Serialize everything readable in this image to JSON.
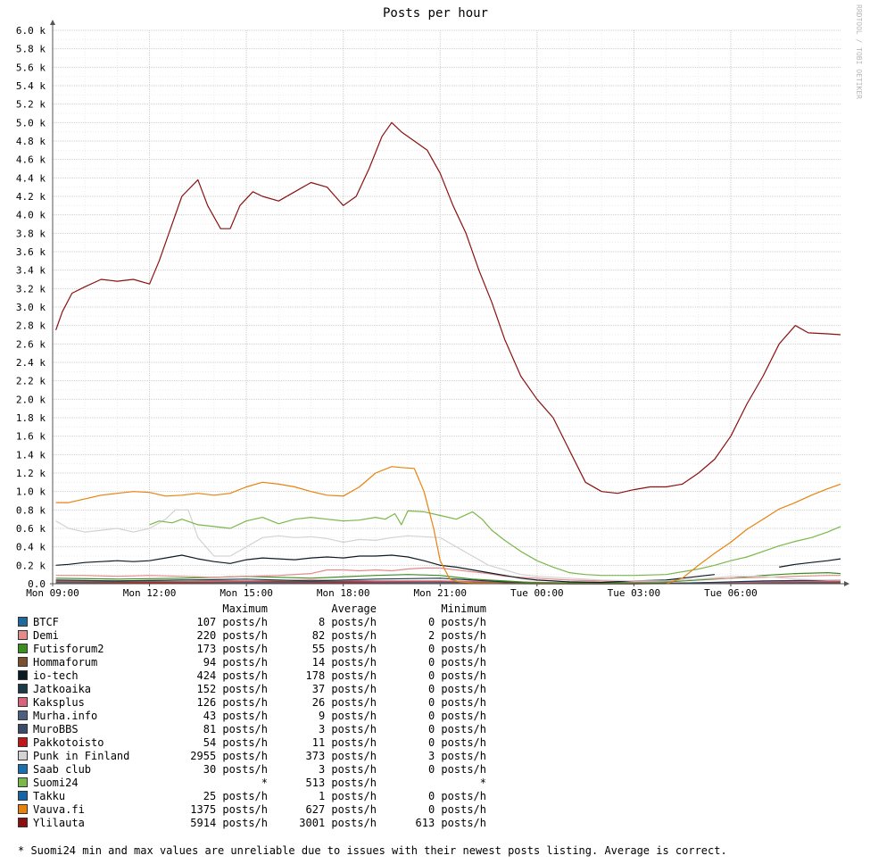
{
  "chart_data": {
    "type": "line",
    "title": "Posts per hour",
    "watermark": "RRDTOOL / TOBI OETIKER",
    "ylim": [
      0,
      6000
    ],
    "y_ticks": [
      0,
      200,
      400,
      600,
      800,
      1000,
      1200,
      1400,
      1600,
      1800,
      2000,
      2200,
      2400,
      2600,
      2800,
      3000,
      3200,
      3400,
      3600,
      3800,
      4000,
      4200,
      4400,
      4600,
      4800,
      5000,
      5200,
      5400,
      5600,
      5800,
      6000
    ],
    "y_tick_labels": [
      "0.0",
      "0.2 k",
      "0.4 k",
      "0.6 k",
      "0.8 k",
      "1.0 k",
      "1.2 k",
      "1.4 k",
      "1.6 k",
      "1.8 k",
      "2.0 k",
      "2.2 k",
      "2.4 k",
      "2.6 k",
      "2.8 k",
      "3.0 k",
      "3.2 k",
      "3.4 k",
      "3.6 k",
      "3.8 k",
      "4.0 k",
      "4.2 k",
      "4.4 k",
      "4.6 k",
      "4.8 k",
      "5.0 k",
      "5.2 k",
      "5.4 k",
      "5.6 k",
      "5.8 k",
      "6.0 k"
    ],
    "x_range_hours": [
      9,
      33.4
    ],
    "x_ticks": [
      9,
      12,
      15,
      18,
      21,
      24,
      27,
      30
    ],
    "x_tick_labels": [
      "Mon 09:00",
      "Mon 12:00",
      "Mon 15:00",
      "Mon 18:00",
      "Mon 21:00",
      "Tue 00:00",
      "Tue 03:00",
      "Tue 06:00"
    ],
    "grid": true,
    "series": [
      {
        "name": "Ylilauta",
        "color": "#8b1010",
        "x": [
          9.1,
          9.3,
          9.6,
          10.0,
          10.5,
          11.0,
          11.5,
          12.0,
          12.3,
          12.6,
          13.0,
          13.5,
          13.8,
          14.2,
          14.5,
          14.8,
          15.2,
          15.5,
          16.0,
          16.5,
          17.0,
          17.5,
          18.0,
          18.4,
          18.8,
          19.2,
          19.5,
          19.8,
          20.2,
          20.6,
          21.0,
          21.4,
          21.8,
          22.2,
          22.6,
          23.0,
          23.5,
          24.0,
          24.5,
          25.0,
          25.5,
          26.0,
          26.5,
          27.0,
          27.5,
          28.0,
          28.5,
          29.0,
          29.5,
          30.0,
          30.5,
          31.0,
          31.5,
          32.0,
          32.4,
          33.0,
          33.4
        ],
        "y": [
          2750,
          2950,
          3150,
          3220,
          3300,
          3280,
          3300,
          3250,
          3500,
          3800,
          4200,
          4380,
          4100,
          3850,
          3850,
          4100,
          4250,
          4200,
          4150,
          4250,
          4350,
          4300,
          4100,
          4200,
          4500,
          4850,
          5000,
          4900,
          4800,
          4700,
          4450,
          4100,
          3800,
          3400,
          3050,
          2650,
          2250,
          2000,
          1800,
          1450,
          1100,
          1000,
          980,
          1020,
          1050,
          1050,
          1080,
          1200,
          1350,
          1600,
          1950,
          2250,
          2600,
          2800,
          2720,
          2710,
          2700
        ]
      },
      {
        "name": "Vauva.fi",
        "color": "#e8820c",
        "x": [
          9.1,
          9.5,
          10.0,
          10.5,
          11.0,
          11.5,
          12.0,
          12.5,
          13.0,
          13.5,
          14.0,
          14.5,
          15.0,
          15.5,
          16.0,
          16.5,
          17.0,
          17.5,
          18.0,
          18.5,
          19.0,
          19.5,
          19.8,
          20.2,
          20.5,
          20.8,
          21.0,
          21.3,
          21.6,
          22.0,
          23.0,
          24.0,
          25.0,
          26.0,
          27.0,
          28.0,
          28.5,
          29.0,
          29.5,
          30.0,
          30.5,
          31.0,
          31.5,
          32.0,
          32.5,
          33.0,
          33.4
        ],
        "y": [
          880,
          880,
          920,
          960,
          980,
          1000,
          990,
          950,
          960,
          980,
          960,
          980,
          1050,
          1100,
          1080,
          1050,
          1000,
          960,
          950,
          1050,
          1200,
          1270,
          1260,
          1250,
          1000,
          600,
          250,
          50,
          20,
          10,
          0,
          0,
          0,
          0,
          0,
          0,
          60,
          200,
          330,
          450,
          590,
          700,
          810,
          880,
          960,
          1030,
          1080
        ]
      },
      {
        "name": "Suomi24",
        "color": "#7ab848",
        "segments": [
          {
            "x": [
              12.0,
              12.3,
              12.7,
              13.0,
              13.5,
              14.0,
              14.5,
              15.0,
              15.5,
              16.0,
              16.5,
              17.0,
              17.5,
              18.0,
              18.5,
              19.0,
              19.3,
              19.6,
              19.8,
              20.0,
              20.5,
              21.0,
              21.5,
              22.0,
              22.3,
              22.6,
              23.0,
              23.5,
              24.0,
              24.5,
              25.0,
              25.5,
              26.0,
              27.0,
              28.0,
              28.5,
              29.0,
              29.5,
              30.0,
              30.5,
              31.0,
              31.5,
              32.0,
              32.5,
              33.0,
              33.4
            ],
            "y": [
              640,
              680,
              660,
              700,
              640,
              620,
              600,
              680,
              720,
              650,
              700,
              720,
              700,
              680,
              690,
              720,
              700,
              760,
              640,
              790,
              780,
              740,
              700,
              780,
              700,
              580,
              470,
              350,
              250,
              180,
              120,
              100,
              90,
              90,
              100,
              130,
              160,
              200,
              250,
              290,
              350,
              410,
              460,
              500,
              560,
              620
            ]
          }
        ]
      },
      {
        "name": "Punk in Finland",
        "color": "#d3d3d3",
        "x": [
          9.1,
          9.5,
          10.0,
          10.5,
          11.0,
          11.5,
          12.0,
          12.5,
          12.8,
          13.2,
          13.5,
          14.0,
          14.5,
          15.0,
          15.5,
          16.0,
          16.5,
          17.0,
          17.5,
          18.0,
          18.5,
          19.0,
          19.5,
          20.0,
          20.5,
          21.0,
          21.5,
          22.0,
          22.5,
          23.0,
          23.5,
          24.0,
          25.0,
          26.0,
          27.0,
          28.0,
          29.0,
          30.0,
          31.0,
          32.0,
          33.0,
          33.4
        ],
        "y": [
          680,
          600,
          560,
          580,
          600,
          560,
          600,
          700,
          800,
          800,
          500,
          300,
          300,
          400,
          500,
          520,
          500,
          510,
          490,
          450,
          480,
          470,
          500,
          520,
          510,
          500,
          400,
          300,
          200,
          150,
          100,
          80,
          60,
          40,
          30,
          30,
          50,
          80,
          80,
          50,
          40,
          40
        ]
      },
      {
        "name": "io-tech",
        "color": "#0c1a22",
        "segments": [
          {
            "x": [
              9.1,
              9.5,
              10.0,
              10.5,
              11.0,
              11.5,
              12.0,
              12.5,
              13.0,
              13.5,
              14.0,
              14.5,
              15.0,
              15.5,
              16.0,
              16.5,
              17.0,
              17.5,
              18.0,
              18.5,
              19.0,
              19.5,
              20.0,
              20.5,
              21.0,
              21.5,
              22.0,
              22.5,
              23.0,
              23.5,
              24.0,
              24.5,
              25.0,
              26.0,
              27.0,
              28.0,
              28.5,
              29.0,
              29.5
            ],
            "y": [
              200,
              210,
              230,
              240,
              250,
              240,
              250,
              280,
              310,
              270,
              240,
              220,
              260,
              280,
              270,
              260,
              280,
              290,
              280,
              300,
              300,
              310,
              290,
              250,
              200,
              180,
              150,
              120,
              90,
              60,
              40,
              30,
              20,
              15,
              30,
              40,
              60,
              80,
              100
            ]
          },
          {
            "x": [
              31.5,
              32.0,
              32.5,
              33.0,
              33.4
            ],
            "y": [
              180,
              210,
              230,
              250,
              270
            ]
          }
        ]
      },
      {
        "name": "Demi",
        "color": "#e38a8a",
        "x": [
          9.1,
          10.0,
          11.0,
          12.0,
          13.0,
          14.0,
          15.0,
          16.0,
          17.0,
          17.5,
          18.0,
          18.5,
          19.0,
          19.5,
          20.0,
          20.5,
          21.0,
          21.5,
          22.0,
          22.5,
          23.0,
          24.0,
          25.0,
          26.0,
          27.0,
          28.0,
          29.0,
          30.0,
          31.0,
          32.0,
          33.0,
          33.4
        ],
        "y": [
          90,
          90,
          80,
          90,
          80,
          70,
          80,
          90,
          110,
          150,
          150,
          140,
          150,
          140,
          160,
          170,
          170,
          150,
          130,
          110,
          80,
          60,
          40,
          30,
          20,
          30,
          50,
          60,
          70,
          80,
          90,
          90
        ]
      },
      {
        "name": "Futisforum2",
        "color": "#3a8f1f",
        "x": [
          9.1,
          11.0,
          13.0,
          15.0,
          17.0,
          19.0,
          20.0,
          21.0,
          22.0,
          23.0,
          24.0,
          26.0,
          28.0,
          30.0,
          31.0,
          32.0,
          33.0,
          33.4
        ],
        "y": [
          60,
          50,
          60,
          80,
          60,
          90,
          100,
          90,
          50,
          30,
          10,
          10,
          20,
          60,
          90,
          110,
          120,
          110
        ]
      },
      {
        "name": "Jatkoaika",
        "color": "#1a3a4a",
        "x": [
          9.1,
          11.0,
          13.0,
          15.0,
          17.0,
          19.0,
          21.0,
          22.0,
          23.0,
          25.0,
          27.0,
          29.0,
          31.0,
          33.4
        ],
        "y": [
          40,
          30,
          40,
          50,
          30,
          50,
          60,
          40,
          20,
          0,
          0,
          10,
          30,
          40
        ]
      },
      {
        "name": "Kaksplus",
        "color": "#d9637a",
        "x": [
          9.1,
          11.0,
          13.0,
          15.0,
          17.0,
          19.0,
          21.0,
          23.0,
          25.0,
          27.0,
          29.0,
          31.0,
          33.4
        ],
        "y": [
          30,
          30,
          40,
          30,
          40,
          30,
          30,
          20,
          10,
          0,
          10,
          20,
          30
        ]
      },
      {
        "name": "Hommaforum",
        "color": "#7a5030",
        "x": [
          9.1,
          12.0,
          15.0,
          18.0,
          21.0,
          23.0,
          26.0,
          29.0,
          32.0,
          33.4
        ],
        "y": [
          20,
          20,
          20,
          30,
          20,
          10,
          0,
          10,
          20,
          20
        ]
      },
      {
        "name": "Murha.info",
        "color": "#4e5e80",
        "x": [
          9.1,
          12.0,
          15.0,
          18.0,
          21.0,
          24.0,
          27.0,
          30.0,
          33.4
        ],
        "y": [
          10,
          20,
          15,
          20,
          10,
          5,
          0,
          10,
          15
        ]
      },
      {
        "name": "Pakkotoisto",
        "color": "#c01818",
        "x": [
          9.1,
          12.0,
          15.0,
          18.0,
          21.0,
          24.0,
          27.0,
          30.0,
          33.4
        ],
        "y": [
          10,
          10,
          15,
          10,
          10,
          0,
          0,
          5,
          10
        ]
      },
      {
        "name": "BTCF",
        "color": "#1f6a9a",
        "x": [
          9.1,
          12.0,
          15.0,
          18.0,
          21.0,
          24.0,
          27.0,
          30.0,
          33.4
        ],
        "y": [
          10,
          5,
          10,
          10,
          5,
          0,
          0,
          5,
          10
        ]
      }
    ]
  },
  "legend": {
    "headers": {
      "maximum": "Maximum",
      "average": "Average",
      "minimum": "Minimum"
    },
    "rows": [
      {
        "name": "BTCF",
        "color": "#1f6a9a",
        "maximum": "107 posts/h",
        "average": "8 posts/h",
        "minimum": "0 posts/h"
      },
      {
        "name": "Demi",
        "color": "#e38a8a",
        "maximum": "220 posts/h",
        "average": "82 posts/h",
        "minimum": "2 posts/h"
      },
      {
        "name": "Futisforum2",
        "color": "#3a8f1f",
        "maximum": "173 posts/h",
        "average": "55 posts/h",
        "minimum": "0 posts/h"
      },
      {
        "name": "Hommaforum",
        "color": "#7a5030",
        "maximum": "94 posts/h",
        "average": "14 posts/h",
        "minimum": "0 posts/h"
      },
      {
        "name": "io-tech",
        "color": "#0c1a22",
        "maximum": "424 posts/h",
        "average": "178 posts/h",
        "minimum": "0 posts/h"
      },
      {
        "name": "Jatkoaika",
        "color": "#1a3a4a",
        "maximum": "152 posts/h",
        "average": "37 posts/h",
        "minimum": "0 posts/h"
      },
      {
        "name": "Kaksplus",
        "color": "#d9637a",
        "maximum": "126 posts/h",
        "average": "26 posts/h",
        "minimum": "0 posts/h"
      },
      {
        "name": "Murha.info",
        "color": "#4e5e80",
        "maximum": "43 posts/h",
        "average": "9 posts/h",
        "minimum": "0 posts/h"
      },
      {
        "name": "MuroBBS",
        "color": "#3a4a68",
        "maximum": "81 posts/h",
        "average": "3 posts/h",
        "minimum": "0 posts/h"
      },
      {
        "name": "Pakkotoisto",
        "color": "#c01818",
        "maximum": "54 posts/h",
        "average": "11 posts/h",
        "minimum": "0 posts/h"
      },
      {
        "name": "Punk in Finland",
        "color": "#d3d3d3",
        "maximum": "2955 posts/h",
        "average": "373 posts/h",
        "minimum": "3 posts/h"
      },
      {
        "name": "Saab club",
        "color": "#1a6fb0",
        "maximum": "30 posts/h",
        "average": "3 posts/h",
        "minimum": "0 posts/h"
      },
      {
        "name": "Suomi24",
        "color": "#7ab848",
        "maximum": "*",
        "average": "513 posts/h",
        "minimum": "*"
      },
      {
        "name": "Takku",
        "color": "#1565a8",
        "maximum": "25 posts/h",
        "average": "1 posts/h",
        "minimum": "0 posts/h"
      },
      {
        "name": "Vauva.fi",
        "color": "#e8820c",
        "maximum": "1375 posts/h",
        "average": "627 posts/h",
        "minimum": "0 posts/h"
      },
      {
        "name": "Ylilauta",
        "color": "#8b1010",
        "maximum": "5914 posts/h",
        "average": "3001 posts/h",
        "minimum": "613 posts/h"
      }
    ]
  },
  "footnote": "* Suomi24 min and max values are unreliable due to issues with their newest posts listing. Average is correct."
}
